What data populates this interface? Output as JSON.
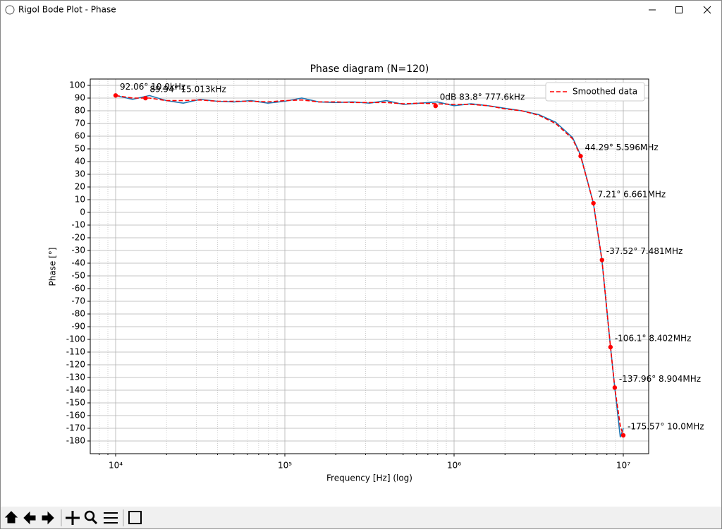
{
  "window": {
    "title": "Rigol Bode Plot - Phase"
  },
  "chart_data": {
    "type": "line",
    "title": "Phase diagram (N=120)",
    "x_label": "Frequency [Hz] (log)",
    "y_label": "Phase [°]",
    "x_scale": "log",
    "grid": true,
    "legend": "upper right",
    "xlim": [
      7079,
      14125000
    ],
    "ylim": [
      -190,
      105
    ],
    "xticks": [
      {
        "value": 10000,
        "label": "10⁴"
      },
      {
        "value": 100000,
        "label": "10⁵"
      },
      {
        "value": 1000000,
        "label": "10⁶"
      },
      {
        "value": 10000000,
        "label": "10⁷"
      }
    ],
    "xticks_minor": [
      8000,
      9000,
      20000,
      30000,
      40000,
      50000,
      60000,
      70000,
      80000,
      90000,
      200000,
      300000,
      400000,
      500000,
      600000,
      700000,
      800000,
      900000,
      2000000,
      3000000,
      4000000,
      5000000,
      6000000,
      7000000,
      8000000,
      9000000
    ],
    "yticks": [
      -180,
      -170,
      -160,
      -150,
      -140,
      -130,
      -120,
      -110,
      -100,
      -90,
      -80,
      -70,
      -60,
      -50,
      -40,
      -30,
      -20,
      -10,
      0,
      10,
      20,
      30,
      40,
      50,
      60,
      70,
      80,
      90,
      100
    ],
    "x": [
      10000,
      12589,
      15849,
      19953,
      25119,
      31623,
      39811,
      50119,
      63096,
      79433,
      100000,
      125893,
      158489,
      199526,
      251189,
      316228,
      398107,
      501187,
      630957,
      794328,
      1000000,
      1258925,
      1584893,
      1995262,
      2511886,
      3162278,
      3981072,
      5011872,
      5596000,
      6661000,
      7481000,
      8402000,
      8904000,
      9600000,
      10000000
    ],
    "series": [
      {
        "color": "#1f77b4",
        "linestyle": "solid",
        "values": [
          92,
          89,
          92,
          88,
          86,
          89,
          87.5,
          87,
          88,
          86,
          87.5,
          90,
          87,
          86.5,
          87,
          86,
          88,
          85,
          86,
          87,
          84,
          85.5,
          84,
          82,
          80,
          77,
          71,
          59,
          45,
          7,
          -38,
          -106,
          -138,
          -177,
          -170
        ]
      },
      {
        "name": "Smoothed data",
        "color": "#ff0000",
        "linestyle": "dashed",
        "values": [
          92,
          90,
          90,
          88,
          88,
          88.5,
          87.5,
          87.5,
          87.5,
          87,
          88,
          88.5,
          87,
          87,
          86.5,
          86.5,
          86.5,
          85.5,
          86,
          85.5,
          85,
          85,
          84,
          81.5,
          80,
          76.5,
          70,
          58,
          44.3,
          7.2,
          -37.5,
          -106,
          -138,
          -168,
          -175.6
        ]
      }
    ],
    "marker_color": "#ff0000",
    "annotations": [
      {
        "x": 10000,
        "y": 92.06,
        "label": "92.06° 10.0kHz"
      },
      {
        "x": 15013,
        "y": 89.94,
        "label": "89.94° 15.013kHz"
      },
      {
        "x": 777600,
        "y": 83.8,
        "label": "0dB 83.8° 777.6kHz"
      },
      {
        "x": 5596000,
        "y": 44.29,
        "label": "44.29° 5.596MHz"
      },
      {
        "x": 6661000,
        "y": 7.21,
        "label": "7.21° 6.661MHz"
      },
      {
        "x": 7481000,
        "y": -37.52,
        "label": "-37.52° 7.481MHz"
      },
      {
        "x": 8402000,
        "y": -106.1,
        "label": "-106.1° 8.402MHz"
      },
      {
        "x": 8904000,
        "y": -137.96,
        "label": "-137.96° 8.904MHz"
      },
      {
        "x": 10000000,
        "y": -175.57,
        "label": "-175.57° 10.0MHz"
      }
    ]
  }
}
